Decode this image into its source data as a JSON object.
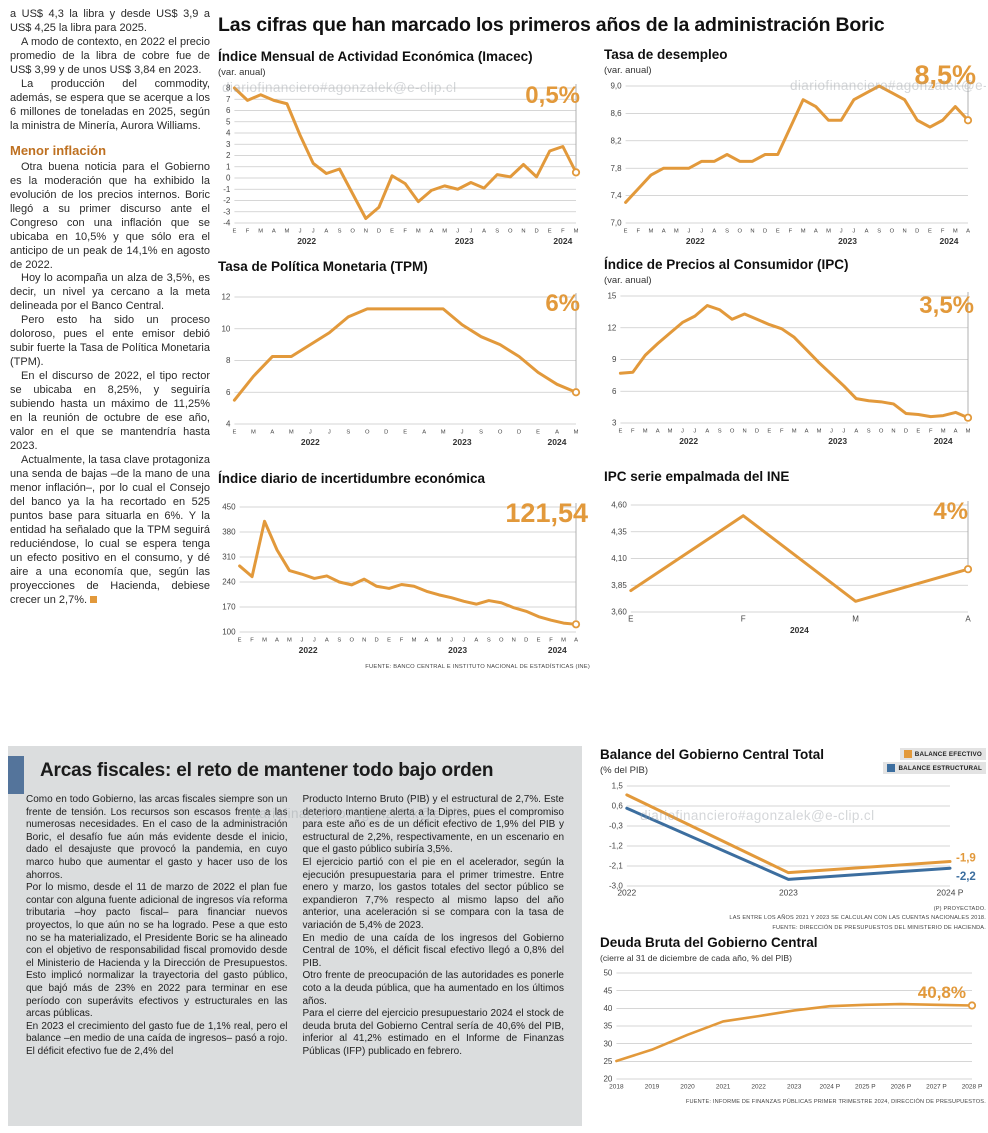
{
  "watermark": "diariofinanciero#agonzalek@e-clip.cl",
  "theme": {
    "accent_orange": "#E2993B",
    "accent_blue": "#3C6E9F",
    "heading_orange": "#BE7020",
    "section_bg": "#DBDDDE",
    "accent_bar_blue": "#54749B"
  },
  "left_article": {
    "intro": [
      "a US$ 4,3 la libra y desde US$ 3,9 a US$ 4,25 la libra para 2025.",
      "A modo de contexto, en 2022 el precio promedio de la libra de cobre fue de US$ 3,99 y de unos US$ 3,84 en 2023.",
      "La producción del commodity, además, se espera que se acerque a los 6 millones de toneladas en 2025, según la ministra de Minería, Aurora Williams."
    ],
    "heading": "Menor inflación",
    "body": [
      "Otra buena noticia para el Gobierno es la moderación que ha exhibido la evolución de los precios internos. Boric llegó a su primer discurso ante el Congreso con una inflación que se ubicaba en 10,5% y que sólo era el anticipo de un peak de 14,1% en agosto de 2022.",
      "Hoy lo acompaña un alza de 3,5%, es decir, un nivel ya cercano a la meta delineada por el Banco Central.",
      "Pero esto ha sido un proceso doloroso, pues el ente emisor debió subir fuerte la Tasa de Política Monetaria (TPM).",
      "En el discurso de 2022, el tipo rector se ubicaba en 8,25%, y seguiría subiendo hasta un máximo de 11,25% en la reunión de octubre de ese año, valor en el que se mantendría hasta 2023.",
      "Actualmente, la tasa clave protagoniza una senda de bajas –de la mano de una menor inflación–, por lo cual el Consejo del banco ya la ha recortado en 525 puntos base para situarla en 6%. Y la entidad ha señalado que la TPM seguirá reduciéndose, lo cual se espera tenga un efecto positivo en el consumo, y dé aire a una economía que, según las proyecciones de Hacienda, debiese crecer un 2,7%."
    ]
  },
  "main_title": "Las cifras que han marcado los primeros años de la administración Boric",
  "charts_source_note": "FUENTE: BANCO CENTRAL E INSTITUTO NACIONAL DE ESTADÍSTICAS (INE)",
  "fiscal_section": {
    "title": "Arcas fiscales: el reto de mantener todo bajo orden",
    "col1": [
      "Como en todo Gobierno, las arcas fiscales siempre son un frente de tensión. Los recursos son escasos frente a las numerosas necesidades. En el caso de la administración Boric, el desafío fue aún más evidente desde el inicio, dado el desajuste que provocó la pandemia, en cuyo marco hubo que aumentar el gasto y hacer uso de los ahorros.",
      "Por lo mismo, desde el 11 de marzo de 2022 el plan fue contar con alguna fuente adicional de ingresos vía reforma tributaria –hoy pacto fiscal– para financiar nuevos proyectos, lo que aún no se ha logrado. Pese a que esto no se ha materializado, el Presidente Boric se ha alineado con el objetivo de responsabilidad fiscal promovido desde el Ministerio de Hacienda y la Dirección de Presupuestos. Esto implicó normalizar la trayectoria del gasto público, que bajó más de 23% en 2022 para terminar en ese período con superávits efectivos y estructurales en las arcas públicas.",
      "En 2023 el crecimiento del gasto fue de 1,1% real, pero el balance –en medio de una caída de ingresos– pasó a rojo. El déficit efectivo fue de 2,4% del"
    ],
    "col2": [
      "Producto Interno Bruto (PIB) y el estructural de 2,7%. Este deterioro mantiene alerta a la Dipres, pues el compromiso para este año es de un déficit efectivo de 1,9% del PIB y estructural de 2,2%, respectivamente, en un escenario en que el gasto público subiría 3,5%.",
      "El ejercicio partió con el pie en el acelerador, según la ejecución presupuestaria para el primer trimestre. Entre enero y marzo, los gastos totales del sector público se expandieron 7,7% respecto al mismo lapso del año anterior, una aceleración si se compara con la tasa de variación de 5,4% de 2023.",
      "En medio de una caída de los ingresos del Gobierno Central de 10%, el déficit fiscal efectivo llegó a 0,8% del PIB.",
      "Otro frente de preocupación de las autoridades es ponerle coto a la deuda pública, que ha aumentado en los últimos años.",
      "Para el cierre del ejercicio presupuestario 2024 el stock de deuda bruta del Gobierno Central sería de 40,6% del PIB, inferior al 41,2% estimado en el Informe de Finanzas Públicas (IFP) publicado en febrero."
    ]
  },
  "chart_data": [
    {
      "type": "line",
      "title": "Índice Mensual de Actividad Económica (Imacec)",
      "subtitle": "(var. anual)",
      "big_label": "0,5%",
      "ylim": [
        -4,
        8
      ],
      "yticks": [
        {
          "v": 8,
          "l": "8"
        },
        {
          "v": 7,
          "l": "7"
        },
        {
          "v": 6,
          "l": "6"
        },
        {
          "v": 5,
          "l": "5"
        },
        {
          "v": 4,
          "l": "4"
        },
        {
          "v": 3,
          "l": "3"
        },
        {
          "v": 2,
          "l": "2"
        },
        {
          "v": 1,
          "l": "1"
        },
        {
          "v": 0,
          "l": "0"
        },
        {
          "v": -1,
          "l": "-1"
        },
        {
          "v": -2,
          "l": "-2"
        },
        {
          "v": -3,
          "l": "-3"
        },
        {
          "v": -4,
          "l": "-4"
        }
      ],
      "x_labels": [
        "E",
        "F",
        "M",
        "A",
        "M",
        "J",
        "J",
        "A",
        "S",
        "O",
        "N",
        "D",
        "E",
        "F",
        "M",
        "A",
        "M",
        "J",
        "J",
        "A",
        "S",
        "O",
        "N",
        "D",
        "E",
        "F",
        "M"
      ],
      "year_groups": [
        {
          "label": "2022",
          "from": 0,
          "to": 11
        },
        {
          "label": "2023",
          "from": 12,
          "to": 23
        },
        {
          "label": "2024",
          "from": 24,
          "to": 26
        }
      ],
      "series": [
        {
          "name": "Imacec",
          "color": "#E2993B",
          "values": [
            8,
            6.9,
            7.4,
            6.9,
            6.6,
            3.8,
            1.3,
            0.4,
            0.8,
            -1.4,
            -3.6,
            -2.6,
            0.2,
            -0.5,
            -2.1,
            -1.1,
            -0.7,
            -1,
            -0.4,
            -0.9,
            0.3,
            0.1,
            1.2,
            0.1,
            2.4,
            2.8,
            0.5
          ]
        }
      ],
      "end_marker": true,
      "guide_line": true
    },
    {
      "type": "line",
      "title": "Tasa de desempleo",
      "subtitle": "(var. anual)",
      "big_label": "8,5%",
      "ylim": [
        7.0,
        9.0
      ],
      "yticks": [
        {
          "v": 9.0,
          "l": "9,0"
        },
        {
          "v": 8.6,
          "l": "8,6"
        },
        {
          "v": 8.2,
          "l": "8,2"
        },
        {
          "v": 7.8,
          "l": "7,8"
        },
        {
          "v": 7.4,
          "l": "7,4"
        },
        {
          "v": 7.0,
          "l": "7,0"
        }
      ],
      "x_labels": [
        "E",
        "F",
        "M",
        "A",
        "M",
        "J",
        "J",
        "A",
        "S",
        "O",
        "N",
        "D",
        "E",
        "F",
        "M",
        "A",
        "M",
        "J",
        "J",
        "A",
        "S",
        "O",
        "N",
        "D",
        "E",
        "F",
        "M",
        "A"
      ],
      "year_groups": [
        {
          "label": "2022",
          "from": 0,
          "to": 11
        },
        {
          "label": "2023",
          "from": 12,
          "to": 23
        },
        {
          "label": "2024",
          "from": 24,
          "to": 27
        }
      ],
      "series": [
        {
          "name": "Tasa de desempleo",
          "color": "#E2993B",
          "values": [
            7.3,
            7.5,
            7.7,
            7.8,
            7.8,
            7.8,
            7.9,
            7.9,
            8.0,
            7.9,
            7.9,
            8.0,
            8.0,
            8.4,
            8.8,
            8.7,
            8.5,
            8.5,
            8.8,
            8.9,
            9.0,
            8.9,
            8.8,
            8.5,
            8.4,
            8.5,
            8.7,
            8.5
          ]
        }
      ],
      "end_marker": true,
      "guide_line": true
    },
    {
      "type": "line",
      "title": "Tasa de Política Monetaria (TPM)",
      "big_label": "6%",
      "ylim": [
        4,
        12
      ],
      "yticks": [
        {
          "v": 12,
          "l": "12"
        },
        {
          "v": 10,
          "l": "10"
        },
        {
          "v": 8,
          "l": "8"
        },
        {
          "v": 6,
          "l": "6"
        },
        {
          "v": 4,
          "l": "4"
        }
      ],
      "x_labels": [
        "E",
        "M",
        "A",
        "M",
        "J",
        "J",
        "S",
        "O",
        "D",
        "E",
        "A",
        "M",
        "J",
        "S",
        "O",
        "D",
        "E",
        "A",
        "M"
      ],
      "year_groups": [
        {
          "label": "2022",
          "from": 0,
          "to": 8
        },
        {
          "label": "2023",
          "from": 9,
          "to": 15
        },
        {
          "label": "2024",
          "from": 16,
          "to": 18
        }
      ],
      "series": [
        {
          "name": "TPM",
          "color": "#E2993B",
          "values": [
            5.5,
            7.0,
            8.25,
            8.25,
            9.0,
            9.75,
            10.75,
            11.25,
            11.25,
            11.25,
            11.25,
            11.25,
            10.25,
            9.5,
            9.0,
            8.25,
            7.25,
            6.5,
            6.0
          ]
        }
      ],
      "end_marker": true,
      "guide_line": true
    },
    {
      "type": "line",
      "title": "Índice de Precios al Consumidor (IPC)",
      "subtitle": "(var. anual)",
      "big_label": "3,5%",
      "ylim": [
        3,
        15
      ],
      "yticks": [
        {
          "v": 15,
          "l": "15"
        },
        {
          "v": 12,
          "l": "12"
        },
        {
          "v": 9,
          "l": "9"
        },
        {
          "v": 6,
          "l": "6"
        },
        {
          "v": 3,
          "l": "3"
        }
      ],
      "x_labels": [
        "E",
        "F",
        "M",
        "A",
        "M",
        "J",
        "J",
        "A",
        "S",
        "O",
        "N",
        "D",
        "E",
        "F",
        "M",
        "A",
        "M",
        "J",
        "J",
        "A",
        "S",
        "O",
        "N",
        "D",
        "E",
        "F",
        "M",
        "A",
        "M"
      ],
      "year_groups": [
        {
          "label": "2022",
          "from": 0,
          "to": 11
        },
        {
          "label": "2023",
          "from": 12,
          "to": 23
        },
        {
          "label": "2024",
          "from": 24,
          "to": 28
        }
      ],
      "series": [
        {
          "name": "IPC",
          "color": "#E2993B",
          "values": [
            7.7,
            7.8,
            9.4,
            10.5,
            11.5,
            12.5,
            13.1,
            14.1,
            13.7,
            12.8,
            13.3,
            12.8,
            12.3,
            11.9,
            11.1,
            9.9,
            8.7,
            7.6,
            6.5,
            5.3,
            5.1,
            5.0,
            4.8,
            3.9,
            3.8,
            3.6,
            3.7,
            4.0,
            3.5
          ]
        }
      ],
      "end_marker": true,
      "guide_line": true
    },
    {
      "type": "line",
      "title": "Índice diario de incertidumbre económica",
      "big_label": "121,54",
      "ylim": [
        100,
        450
      ],
      "yticks": [
        {
          "v": 450,
          "l": "450"
        },
        {
          "v": 380,
          "l": "380"
        },
        {
          "v": 310,
          "l": "310"
        },
        {
          "v": 240,
          "l": "240"
        },
        {
          "v": 170,
          "l": "170"
        },
        {
          "v": 100,
          "l": "100"
        }
      ],
      "x_labels": [
        "E",
        "F",
        "M",
        "A",
        "M",
        "J",
        "J",
        "A",
        "S",
        "O",
        "N",
        "D",
        "E",
        "F",
        "M",
        "A",
        "M",
        "J",
        "J",
        "A",
        "S",
        "O",
        "N",
        "D",
        "E",
        "F",
        "M",
        "A"
      ],
      "year_groups": [
        {
          "label": "2022",
          "from": 0,
          "to": 11
        },
        {
          "label": "2023",
          "from": 12,
          "to": 23
        },
        {
          "label": "2024",
          "from": 24,
          "to": 27
        }
      ],
      "series": [
        {
          "name": "Incertidumbre económica",
          "color": "#E2993B",
          "values": [
            285,
            255,
            410,
            330,
            272,
            262,
            250,
            257,
            240,
            232,
            248,
            228,
            222,
            233,
            228,
            214,
            204,
            196,
            186,
            178,
            188,
            182,
            168,
            158,
            143,
            133,
            125,
            121.54
          ]
        }
      ],
      "end_marker": true,
      "guide_line": true
    },
    {
      "type": "line",
      "title": "IPC serie empalmada del INE",
      "big_label": "4%",
      "ylim": [
        3.6,
        4.6
      ],
      "yticks": [
        {
          "v": 4.6,
          "l": "4,60"
        },
        {
          "v": 4.35,
          "l": "4,35"
        },
        {
          "v": 4.1,
          "l": "4,10"
        },
        {
          "v": 3.85,
          "l": "3,85"
        },
        {
          "v": 3.6,
          "l": "3,60"
        }
      ],
      "x_labels": [
        "E",
        "F",
        "M",
        "A"
      ],
      "x_label_size": 8,
      "year_groups": [
        {
          "label": "2024",
          "from": 0,
          "to": 3
        }
      ],
      "series": [
        {
          "name": "IPC serie empalmada",
          "color": "#E2993B",
          "values": [
            3.8,
            4.5,
            3.7,
            4.0
          ]
        }
      ],
      "end_marker": true,
      "guide_line": true
    },
    {
      "type": "line",
      "title": "Balance del Gobierno Central Total",
      "subtitle": "(% del PIB)",
      "ylim": [
        -3.0,
        1.5
      ],
      "yticks": [
        {
          "v": 1.5,
          "l": "1,5"
        },
        {
          "v": 0.6,
          "l": "0,6"
        },
        {
          "v": -0.3,
          "l": "-0,3"
        },
        {
          "v": -1.2,
          "l": "-1,2"
        },
        {
          "v": -2.1,
          "l": "-2,1"
        },
        {
          "v": -3.0,
          "l": "-3,0"
        }
      ],
      "x_labels": [
        "2022",
        "2023",
        "2024 P"
      ],
      "x_label_size": 8.5,
      "series": [
        {
          "name": "BALANCE EFECTIVO",
          "color": "#E2993B",
          "values": [
            1.1,
            -2.4,
            -1.9
          ]
        },
        {
          "name": "BALANCE ESTRUCTURAL",
          "color": "#3C6E9F",
          "values": [
            0.5,
            -2.7,
            -2.2
          ]
        }
      ],
      "end_marker": false,
      "guide_line": false,
      "end_labels": [
        {
          "text": "-1,9",
          "color": "#E2993B",
          "dy": -3
        },
        {
          "text": "-2,2",
          "color": "#3C6E9F",
          "dy": 9
        }
      ],
      "legend_position": "top-right",
      "notes": [
        "(P) PROYECTADO.",
        "LAS ENTRE LOS AÑOS 2021 Y 2023 SE CALCULAN CON LAS CUENTAS NACIONALES 2018.",
        "FUENTE: DIRECCIÓN DE PRESUPUESTOS DEL MINISTERIO DE HACIENDA."
      ]
    },
    {
      "type": "line",
      "title": "Deuda Bruta del Gobierno Central",
      "subtitle": "(cierre al 31 de diciembre de cada año, % del PIB)",
      "big_label": "40,8%",
      "ylim": [
        20,
        50
      ],
      "yticks": [
        {
          "v": 50,
          "l": "50"
        },
        {
          "v": 45,
          "l": "45"
        },
        {
          "v": 40,
          "l": "40"
        },
        {
          "v": 35,
          "l": "35"
        },
        {
          "v": 30,
          "l": "30"
        },
        {
          "v": 25,
          "l": "25"
        },
        {
          "v": 20,
          "l": "20"
        }
      ],
      "x_labels": [
        "2018",
        "2019",
        "2020",
        "2021",
        "2022",
        "2023",
        "2024 P",
        "2025 P",
        "2026 P",
        "2027 P",
        "2028 P"
      ],
      "x_label_size": 6.5,
      "stroke_width": 2.6,
      "series": [
        {
          "name": "Deuda bruta",
          "color": "#E2993B",
          "values": [
            25.1,
            28.3,
            32.5,
            36.3,
            37.8,
            39.4,
            40.6,
            41.0,
            41.2,
            41.0,
            40.8
          ]
        }
      ],
      "end_marker": true,
      "guide_line": false,
      "source": "FUENTE: INFORME DE FINANZAS PÚBLICAS PRIMER TRIMESTRE 2024, DIRECCIÓN DE PRESUPUESTOS."
    }
  ]
}
